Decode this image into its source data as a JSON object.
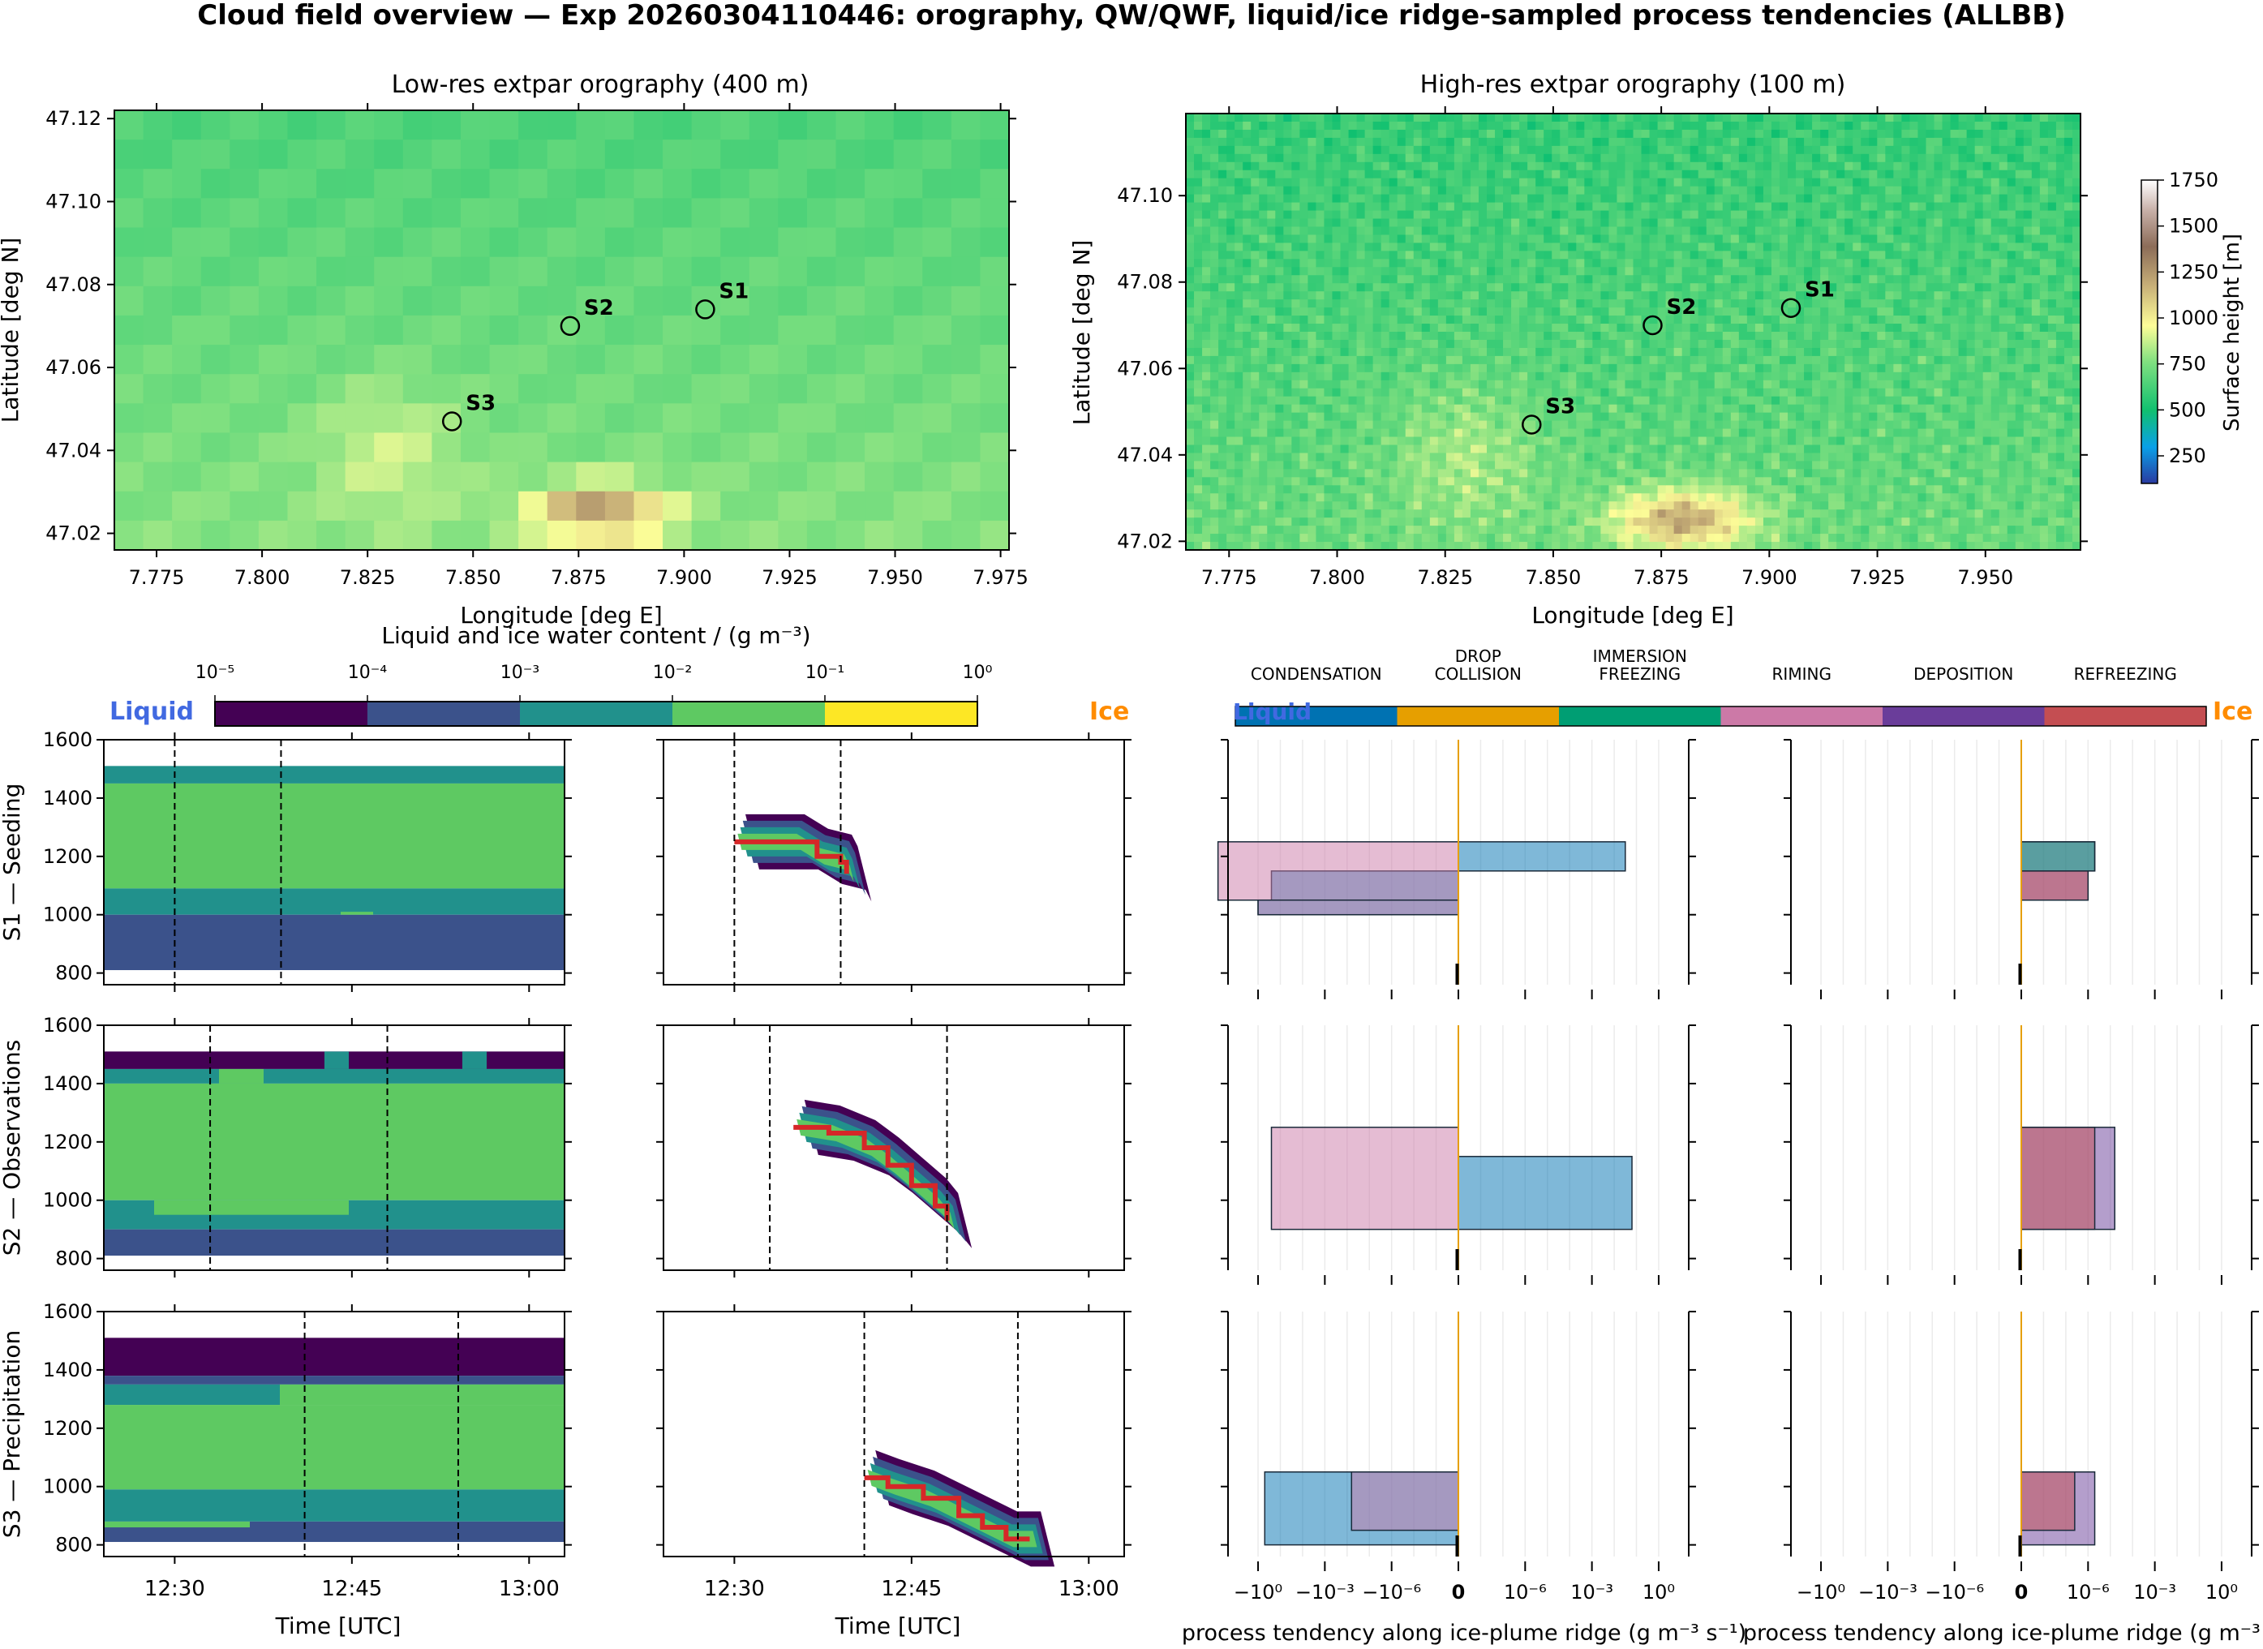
{
  "title": "Cloud field overview — Exp 20260304110446: orography, QW/QWF, liquid/ice ridge-sampled process tendencies (ALLBB)",
  "colors": {
    "lwc": [
      "#440154",
      "#3b528b",
      "#21918c",
      "#5ec962",
      "#fde725"
    ],
    "processes": [
      "#0072b2",
      "#e69f00",
      "#009e73",
      "#cc79a7",
      "#6a3d9a",
      "#c44e52"
    ],
    "liquid_label": "#4169e1",
    "ice_label": "#ff8c00",
    "ridge_line": "#d62728"
  },
  "chart_data": [
    {
      "type": "heatmap",
      "id": "orog_low",
      "title": "Low-res extpar orography (400 m)",
      "xlabel": "Longitude [deg E]",
      "ylabel": "Latitude [deg N]",
      "xlim": [
        7.765,
        7.977
      ],
      "ylim": [
        47.016,
        47.122
      ],
      "xticks": [
        "7.775",
        "7.800",
        "7.825",
        "7.850",
        "7.875",
        "7.900",
        "7.925",
        "7.950",
        "7.975"
      ],
      "yticks": [
        "47.02",
        "47.04",
        "47.06",
        "47.08",
        "47.10",
        "47.12"
      ],
      "sites": [
        {
          "name": "S1",
          "lon": 7.905,
          "lat": 47.074
        },
        {
          "name": "S2",
          "lon": 7.873,
          "lat": 47.07
        },
        {
          "name": "S3",
          "lon": 7.845,
          "lat": 47.047
        }
      ]
    },
    {
      "type": "heatmap",
      "id": "orog_high",
      "title": "High-res extpar orography (100 m)",
      "xlabel": "Longitude [deg E]",
      "ylabel": "Latitude [deg N]",
      "xlim": [
        7.765,
        7.972
      ],
      "ylim": [
        47.018,
        47.119
      ],
      "xticks": [
        "7.775",
        "7.800",
        "7.825",
        "7.850",
        "7.875",
        "7.900",
        "7.925",
        "7.950"
      ],
      "yticks": [
        "47.02",
        "47.04",
        "47.06",
        "47.08",
        "47.10"
      ],
      "colorbar": {
        "label": "Surface height [m]",
        "range": [
          100,
          1750
        ],
        "ticks": [
          "250",
          "500",
          "750",
          "1000",
          "1250",
          "1500",
          "1750"
        ]
      },
      "sites": [
        {
          "name": "S1",
          "lon": 7.905,
          "lat": 47.074
        },
        {
          "name": "S2",
          "lon": 7.873,
          "lat": 47.07
        },
        {
          "name": "S3",
          "lon": 7.845,
          "lat": 47.047
        }
      ]
    },
    {
      "type": "heatmap",
      "id": "lwc_profiles",
      "colorbar_title": "Liquid and ice water content / (g m⁻³)",
      "colorbar_ticks": [
        "10⁻⁵",
        "10⁻⁴",
        "10⁻³",
        "10⁻²",
        "10⁻¹",
        "10⁰"
      ],
      "liquid_label": "Liquid",
      "ice_label": "Ice",
      "xlabel": "Time [UTC]",
      "xticks": [
        "12:30",
        "12:45",
        "13:00"
      ],
      "ylim": [
        760,
        1600
      ],
      "yticks": [
        "800",
        "1000",
        "1200",
        "1400",
        "1600"
      ],
      "rows": [
        {
          "label": "S1 — Seeding",
          "liquid_layers": [
            [
              1450,
              1510,
              3
            ],
            [
              1090,
              1450,
              4
            ],
            [
              1000,
              1090,
              3
            ],
            [
              810,
              1000,
              2
            ]
          ],
          "liquid_dashed_times": [
            "12:30",
            "12:39"
          ],
          "ice_dashed_times": [
            "12:30",
            "12:39"
          ],
          "ice_ridge": [
            [
              1250,
              "12:30"
            ],
            [
              1250,
              "12:35"
            ],
            [
              1200,
              "12:37"
            ],
            [
              1180,
              "12:39"
            ],
            [
              1140,
              "12:39.5"
            ]
          ]
        },
        {
          "label": "S2 — Observations",
          "liquid_layers": [
            [
              1450,
              1510,
              1
            ],
            [
              1400,
              1450,
              3
            ],
            [
              1000,
              1400,
              4
            ],
            [
              900,
              1000,
              3
            ],
            [
              810,
              900,
              2
            ]
          ],
          "liquid_dashed_times": [
            "12:33",
            "12:48"
          ],
          "ice_dashed_times": [
            "12:33",
            "12:48"
          ],
          "ice_ridge": [
            [
              1250,
              "12:35"
            ],
            [
              1230,
              "12:38"
            ],
            [
              1180,
              "12:41"
            ],
            [
              1120,
              "12:43"
            ],
            [
              1050,
              "12:45"
            ],
            [
              980,
              "12:47"
            ],
            [
              930,
              "12:48"
            ]
          ]
        },
        {
          "label": "S3 — Precipitation",
          "liquid_layers": [
            [
              1380,
              1510,
              1
            ],
            [
              1350,
              1380,
              2
            ],
            [
              1280,
              1350,
              3
            ],
            [
              990,
              1280,
              4
            ],
            [
              880,
              990,
              3
            ],
            [
              810,
              880,
              2
            ]
          ],
          "liquid_dashed_times": [
            "12:41",
            "12:54"
          ],
          "ice_dashed_times": [
            "12:41",
            "12:54"
          ],
          "ice_ridge": [
            [
              1030,
              "12:41"
            ],
            [
              1000,
              "12:43"
            ],
            [
              960,
              "12:46"
            ],
            [
              900,
              "12:49"
            ],
            [
              860,
              "12:51"
            ],
            [
              820,
              "12:53"
            ],
            [
              820,
              "12:55"
            ]
          ]
        }
      ]
    },
    {
      "type": "bar",
      "id": "process_tendencies",
      "orientation": "horizontal",
      "xscale": "symlog",
      "legend": [
        "CONDENSATION",
        "DROP COLLISION",
        "IMMERSION FREEZING",
        "RIMING",
        "DEPOSITION",
        "REFREEZING"
      ],
      "legend_liquid": "Liquid",
      "legend_ice": "Ice",
      "xticks": [
        "−10⁰",
        "−10⁻³",
        "−10⁻⁶",
        "0",
        "10⁻⁶",
        "10⁻³",
        "10⁰"
      ],
      "xlabel": "process tendency along ice-plume ridge (g m⁻³ s⁻¹)",
      "ylim": [
        760,
        1600
      ],
      "rows": [
        {
          "liquid": [
            {
              "name": "CONDENSATION",
              "steps": [
                [
                  1150,
                  1250,
                  2.5
                ],
                [
                  1050,
                  1150,
                  -2.8
                ],
                [
                  1000,
                  1050,
                  -3.0
                ]
              ]
            },
            {
              "name": "RIMING",
              "steps": [
                [
                  1050,
                  1250,
                  -3.6
                ],
                [
                  1000,
                  1050,
                  -3.0
                ]
              ]
            }
          ],
          "ice": [
            {
              "name": "DEPOSITION",
              "steps": [
                [
                  1150,
                  1250,
                  1.1
                ],
                [
                  1050,
                  1150,
                  1.0
                ]
              ]
            },
            {
              "name": "IMMERSION FREEZING",
              "steps": [
                [
                  1150,
                  1250,
                  1.1
                ]
              ]
            },
            {
              "name": "REFREEZING",
              "steps": [
                [
                  1050,
                  1150,
                  1.0
                ]
              ]
            }
          ]
        },
        {
          "liquid": [
            {
              "name": "CONDENSATION",
              "steps": [
                [
                  900,
                  1150,
                  2.6
                ]
              ]
            },
            {
              "name": "RIMING",
              "steps": [
                [
                  900,
                  1250,
                  -2.8
                ]
              ]
            }
          ],
          "ice": [
            {
              "name": "DEPOSITION",
              "steps": [
                [
                  900,
                  1250,
                  1.4
                ]
              ]
            },
            {
              "name": "REFREEZING",
              "steps": [
                [
                  900,
                  1250,
                  1.1
                ]
              ]
            }
          ]
        },
        {
          "liquid": [
            {
              "name": "CONDENSATION",
              "steps": [
                [
                  800,
                  1050,
                  -2.9
                ]
              ]
            },
            {
              "name": "RIMING",
              "steps": [
                [
                  850,
                  1050,
                  -1.6
                ]
              ]
            }
          ],
          "ice": [
            {
              "name": "DEPOSITION",
              "steps": [
                [
                  800,
                  1050,
                  1.1
                ]
              ]
            },
            {
              "name": "REFREEZING",
              "steps": [
                [
                  850,
                  1050,
                  0.8
                ]
              ]
            }
          ]
        }
      ]
    }
  ]
}
